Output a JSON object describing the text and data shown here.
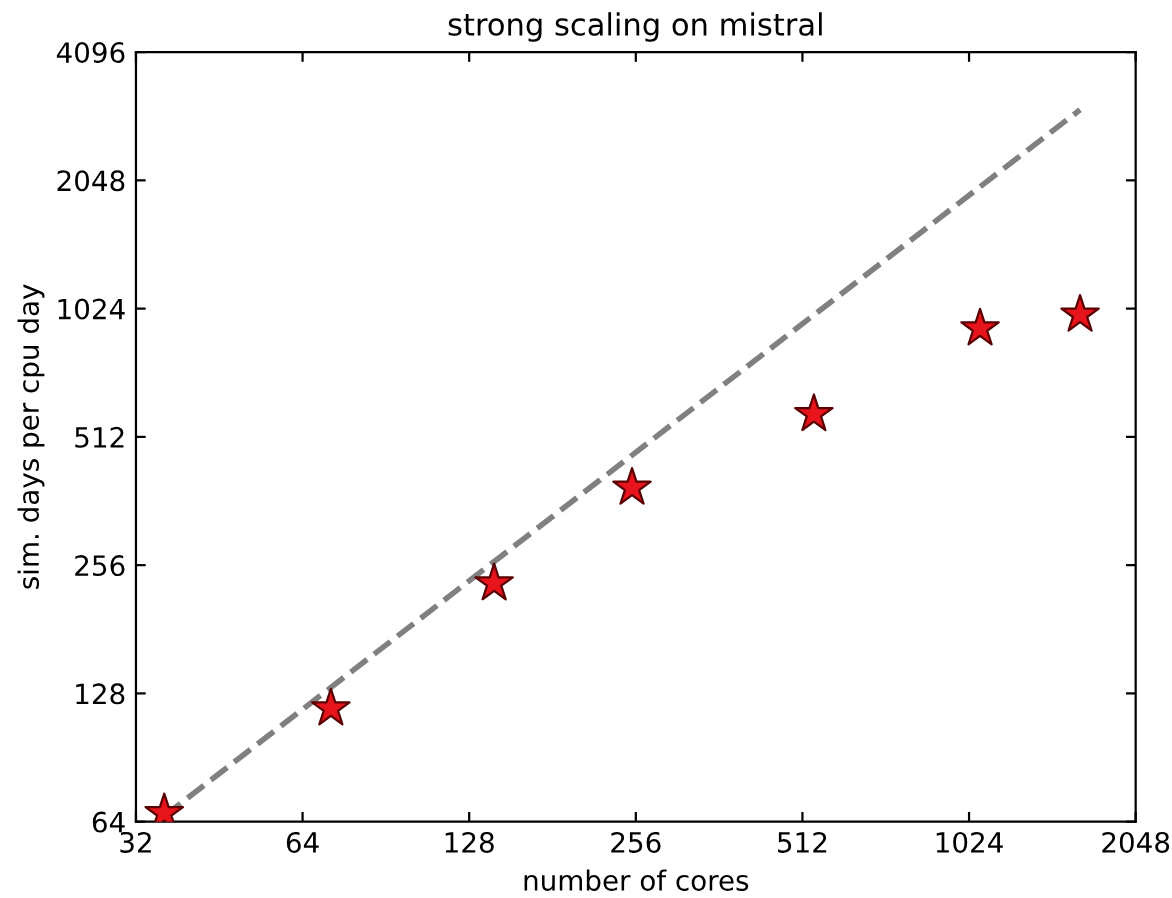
{
  "chart_data": {
    "type": "scatter",
    "title": "strong scaling on mistral",
    "xlabel": "number of cores",
    "ylabel": "sim. days per cpu day",
    "log": "xy",
    "xlim": [
      32,
      2048
    ],
    "xticks": [
      32,
      64,
      128,
      256,
      512,
      1024,
      2048
    ],
    "ylim": [
      64,
      4096
    ],
    "yticks": [
      64,
      128,
      256,
      512,
      1024,
      2048,
      4096
    ],
    "grid": false,
    "legend": false,
    "series": [
      {
        "type": "line",
        "color": "#808080",
        "line_style": "dashed",
        "marker": "none",
        "x": [
          36,
          1625
        ],
        "values": [
          66,
          3000
        ]
      },
      {
        "color": "#e8141c",
        "marker": "star",
        "x": [
          36,
          72,
          142,
          252,
          537,
          1072,
          1625
        ],
        "values": [
          67,
          118,
          232,
          389,
          579,
          920,
          991
        ]
      }
    ]
  }
}
